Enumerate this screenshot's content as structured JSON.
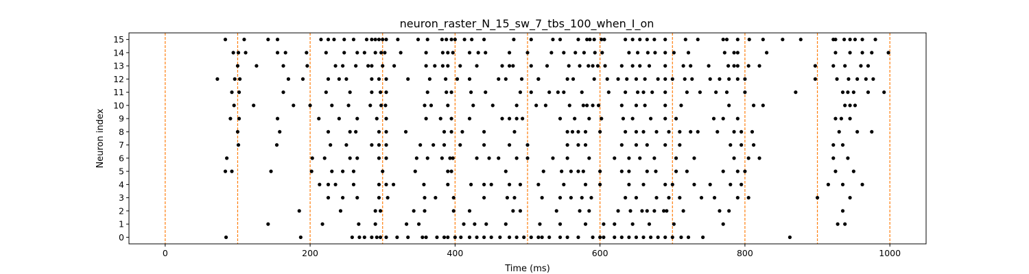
{
  "chart_data": {
    "type": "scatter",
    "title": "neuron_raster_N_15_sw_7_tbs_100_when_I_on",
    "xlabel": "Time (ms)",
    "ylabel": "Neuron index",
    "xlim": [
      -50,
      1050
    ],
    "ylim": [
      -0.5,
      15.5
    ],
    "x_ticks": [
      0,
      200,
      400,
      600,
      800,
      1000
    ],
    "y_ticks": [
      0,
      1,
      2,
      3,
      4,
      5,
      6,
      7,
      8,
      9,
      10,
      11,
      12,
      13,
      14,
      15
    ],
    "grid": false,
    "legend": "none",
    "marker_color": "#000000",
    "vline_color": "#ff7f0e",
    "vlines_x": [
      0,
      100,
      200,
      300,
      400,
      500,
      600,
      700,
      800,
      900,
      1000
    ],
    "spikes": [
      {
        "neuron": 15,
        "times": [
          83,
          109,
          142,
          155,
          215,
          225,
          233,
          247,
          260,
          278,
          285,
          290,
          295,
          300,
          305,
          321,
          349,
          362,
          382,
          388,
          395,
          400,
          413,
          423,
          440,
          481,
          505,
          535,
          545,
          570,
          582,
          586,
          592,
          602,
          606,
          635,
          645,
          655,
          665,
          675,
          690,
          718,
          735,
          770,
          775,
          790,
          806,
          825,
          852,
          877,
          922,
          925,
          937,
          945,
          952,
          962,
          980
        ]
      },
      {
        "neuron": 14,
        "times": [
          94,
          101,
          111,
          155,
          166,
          195,
          222,
          247,
          265,
          275,
          290,
          298,
          303,
          325,
          360,
          383,
          390,
          397,
          420,
          432,
          442,
          475,
          500,
          533,
          550,
          566,
          578,
          593,
          603,
          640,
          652,
          666,
          676,
          690,
          702,
          722,
          772,
          785,
          790,
          830,
          925,
          945,
          962,
          975,
          998
        ]
      },
      {
        "neuron": 13,
        "times": [
          100,
          126,
          163,
          196,
          235,
          245,
          263,
          280,
          285,
          300,
          316,
          360,
          372,
          383,
          390,
          407,
          430,
          465,
          475,
          480,
          505,
          527,
          557,
          572,
          584,
          590,
          597,
          607,
          630,
          645,
          655,
          668,
          690,
          715,
          725,
          750,
          777,
          785,
          790,
          805,
          820,
          897,
          922,
          938,
          960,
          970
        ]
      },
      {
        "neuron": 12,
        "times": [
          72,
          96,
          103,
          170,
          190,
          225,
          240,
          250,
          285,
          295,
          305,
          335,
          365,
          387,
          403,
          420,
          460,
          470,
          492,
          515,
          515,
          555,
          563,
          592,
          610,
          625,
          637,
          650,
          662,
          680,
          690,
          700,
          717,
          727,
          752,
          765,
          778,
          790,
          800,
          897,
          927,
          943,
          955,
          967,
          977
        ]
      },
      {
        "neuron": 11,
        "times": [
          92,
          102,
          163,
          222,
          255,
          285,
          297,
          305,
          362,
          388,
          395,
          422,
          442,
          490,
          505,
          530,
          542,
          550,
          575,
          612,
          635,
          652,
          660,
          672,
          690,
          720,
          738,
          760,
          775,
          800,
          870,
          935,
          942,
          950,
          970,
          992
        ]
      },
      {
        "neuron": 10,
        "times": [
          95,
          122,
          177,
          200,
          230,
          253,
          283,
          298,
          304,
          358,
          367,
          390,
          425,
          452,
          485,
          512,
          525,
          558,
          577,
          582,
          590,
          598,
          630,
          650,
          662,
          690,
          712,
          778,
          812,
          825,
          938,
          945,
          952
        ]
      },
      {
        "neuron": 9,
        "times": [
          90,
          102,
          155,
          212,
          240,
          265,
          292,
          305,
          360,
          380,
          395,
          420,
          465,
          475,
          485,
          493,
          545,
          565,
          585,
          602,
          632,
          645,
          670,
          690,
          705,
          757,
          770,
          790,
          925,
          933,
          945
        ]
      },
      {
        "neuron": 8,
        "times": [
          100,
          158,
          225,
          255,
          263,
          295,
          305,
          332,
          385,
          395,
          410,
          440,
          482,
          555,
          562,
          570,
          580,
          600,
          635,
          650,
          660,
          678,
          695,
          710,
          725,
          735,
          762,
          785,
          795,
          810,
          930,
          955,
          975
        ]
      },
      {
        "neuron": 7,
        "times": [
          101,
          154,
          228,
          250,
          285,
          295,
          305,
          352,
          370,
          385,
          407,
          440,
          475,
          500,
          555,
          570,
          580,
          630,
          650,
          665,
          690,
          710,
          780,
          795,
          812,
          922,
          935
        ]
      },
      {
        "neuron": 6,
        "times": [
          85,
          203,
          220,
          255,
          265,
          295,
          305,
          347,
          362,
          382,
          393,
          397,
          430,
          447,
          460,
          485,
          500,
          535,
          555,
          585,
          620,
          640,
          655,
          675,
          705,
          730,
          785,
          805,
          820,
          922,
          942
        ]
      },
      {
        "neuron": 5,
        "times": [
          83,
          92,
          146,
          202,
          230,
          245,
          260,
          300,
          345,
          390,
          395,
          470,
          522,
          547,
          560,
          570,
          577,
          600,
          630,
          640,
          665,
          677,
          705,
          720,
          770,
          790,
          800,
          925,
          950
        ]
      },
      {
        "neuron": 4,
        "times": [
          213,
          225,
          235,
          260,
          295,
          305,
          315,
          357,
          390,
          422,
          440,
          450,
          475,
          490,
          515,
          550,
          580,
          600,
          640,
          660,
          690,
          700,
          730,
          752,
          780,
          795,
          915,
          935,
          962
        ]
      },
      {
        "neuron": 3,
        "times": [
          225,
          245,
          265,
          295,
          307,
          358,
          373,
          398,
          440,
          472,
          482,
          520,
          545,
          560,
          575,
          588,
          635,
          650,
          678,
          695,
          710,
          740,
          758,
          790,
          805,
          900,
          945
        ]
      },
      {
        "neuron": 2,
        "times": [
          185,
          242,
          290,
          297,
          343,
          358,
          398,
          420,
          480,
          490,
          540,
          572,
          585,
          625,
          642,
          658,
          665,
          675,
          688,
          692,
          715,
          765,
          778,
          935
        ]
      },
      {
        "neuron": 1,
        "times": [
          142,
          217,
          267,
          290,
          333,
          350,
          412,
          427,
          443,
          470,
          517,
          545,
          580,
          605,
          620,
          645,
          668,
          702,
          770,
          928,
          938
        ]
      },
      {
        "neuron": 0,
        "times": [
          84,
          187,
          258,
          268,
          275,
          285,
          292,
          297,
          305,
          320,
          335,
          355,
          360,
          375,
          385,
          390,
          400,
          408,
          420,
          430,
          440,
          450,
          462,
          475,
          485,
          495,
          505,
          515,
          520,
          530,
          545,
          555,
          570,
          590,
          600,
          605,
          620,
          630,
          640,
          650,
          660,
          670,
          680,
          690,
          700,
          712,
          722,
          742,
          862
        ]
      }
    ]
  }
}
